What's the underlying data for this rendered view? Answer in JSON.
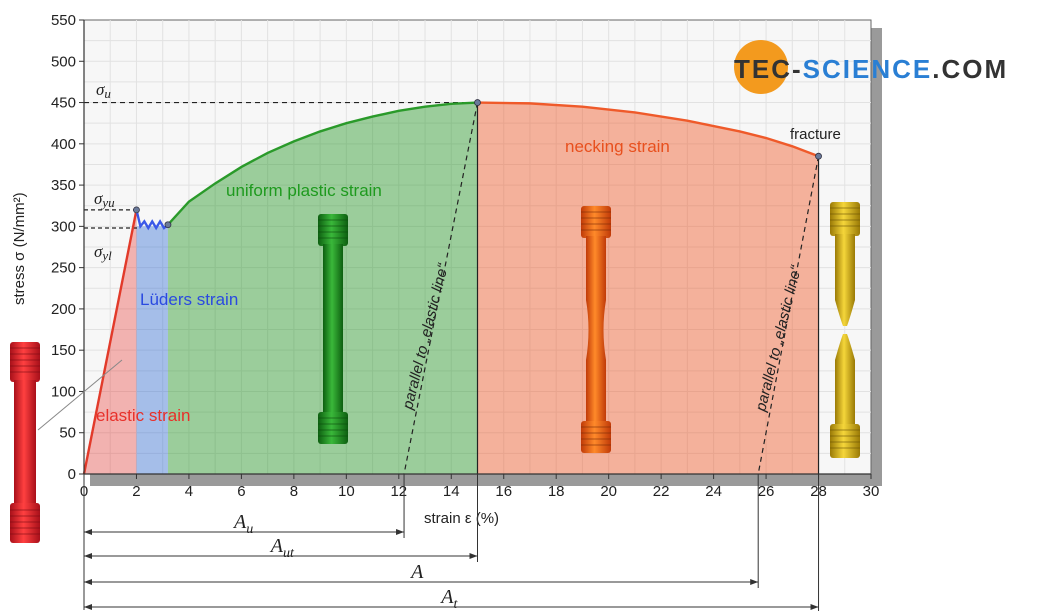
{
  "logo": {
    "part1": "TEC-",
    "part2": "SCIENCE",
    "part3": ".COM",
    "circle_color": "#f39a1e",
    "accent_color": "#2a7fd4"
  },
  "chart_data": {
    "type": "line",
    "xlabel": "strain ε (%)",
    "ylabel": "stress σ (N/mm²)",
    "xlim": [
      0,
      30
    ],
    "ylim": [
      0,
      550
    ],
    "x_ticks": [
      0,
      2,
      4,
      6,
      8,
      10,
      12,
      14,
      16,
      18,
      20,
      22,
      24,
      26,
      28,
      30
    ],
    "y_ticks": [
      0,
      50,
      100,
      150,
      200,
      250,
      300,
      350,
      400,
      450,
      500,
      550
    ],
    "grid": true,
    "segments": [
      {
        "name": "elastic",
        "color": "#e23a2a",
        "points": [
          [
            0,
            0
          ],
          [
            2,
            320
          ]
        ]
      },
      {
        "name": "lueders",
        "color": "#3a58e8",
        "points": [
          [
            2,
            320
          ],
          [
            2.15,
            300
          ],
          [
            2.3,
            306
          ],
          [
            2.45,
            298
          ],
          [
            2.6,
            306
          ],
          [
            2.75,
            298
          ],
          [
            2.9,
            306
          ],
          [
            3.05,
            298
          ],
          [
            3.2,
            302
          ]
        ]
      },
      {
        "name": "uniform",
        "color": "#2a9a2a",
        "points": [
          [
            3.2,
            302
          ],
          [
            4,
            330
          ],
          [
            5,
            352
          ],
          [
            6,
            372
          ],
          [
            7,
            389
          ],
          [
            8,
            403
          ],
          [
            9,
            415
          ],
          [
            10,
            425
          ],
          [
            11,
            433
          ],
          [
            12,
            440
          ],
          [
            13,
            445
          ],
          [
            14,
            448.5
          ],
          [
            15,
            450
          ]
        ]
      },
      {
        "name": "necking",
        "color": "#ef5a2a",
        "points": [
          [
            15,
            450
          ],
          [
            17,
            449
          ],
          [
            19,
            445
          ],
          [
            21,
            438
          ],
          [
            23,
            428
          ],
          [
            25,
            415
          ],
          [
            26,
            407
          ],
          [
            27,
            397
          ],
          [
            28,
            385
          ]
        ]
      }
    ],
    "regions": [
      {
        "label": "elastic strain",
        "color": "#e8302a",
        "label_color": "#e8302a"
      },
      {
        "label": "Lüders strain",
        "color": "#2a6ad4",
        "label_color": "#2a4ae0"
      },
      {
        "label": "uniform plastic strain",
        "color": "#2a9a2a",
        "label_color": "#1e9a1e"
      },
      {
        "label": "necking strain",
        "color": "#ef5a2a",
        "label_color": "#e8501e"
      }
    ],
    "annotations": {
      "fracture": "fracture",
      "parallel_1": "parallel to „elastic line“",
      "parallel_2": "parallel to „elastic line“",
      "sigma_u": {
        "sym": "σ",
        "sub": "u",
        "value": 450
      },
      "sigma_yu": {
        "sym": "σ",
        "sub": "yu",
        "value": 320
      },
      "sigma_yl": {
        "sym": "σ",
        "sub": "yl",
        "value": 298
      }
    },
    "elongations": [
      {
        "sym": "A",
        "sub": "u",
        "end": 12.2
      },
      {
        "sym": "A",
        "sub": "ut",
        "end": 15
      },
      {
        "sym": "A",
        "sub": "",
        "end": 25.7
      },
      {
        "sym": "A",
        "sub": "t",
        "end": 28
      }
    ]
  }
}
